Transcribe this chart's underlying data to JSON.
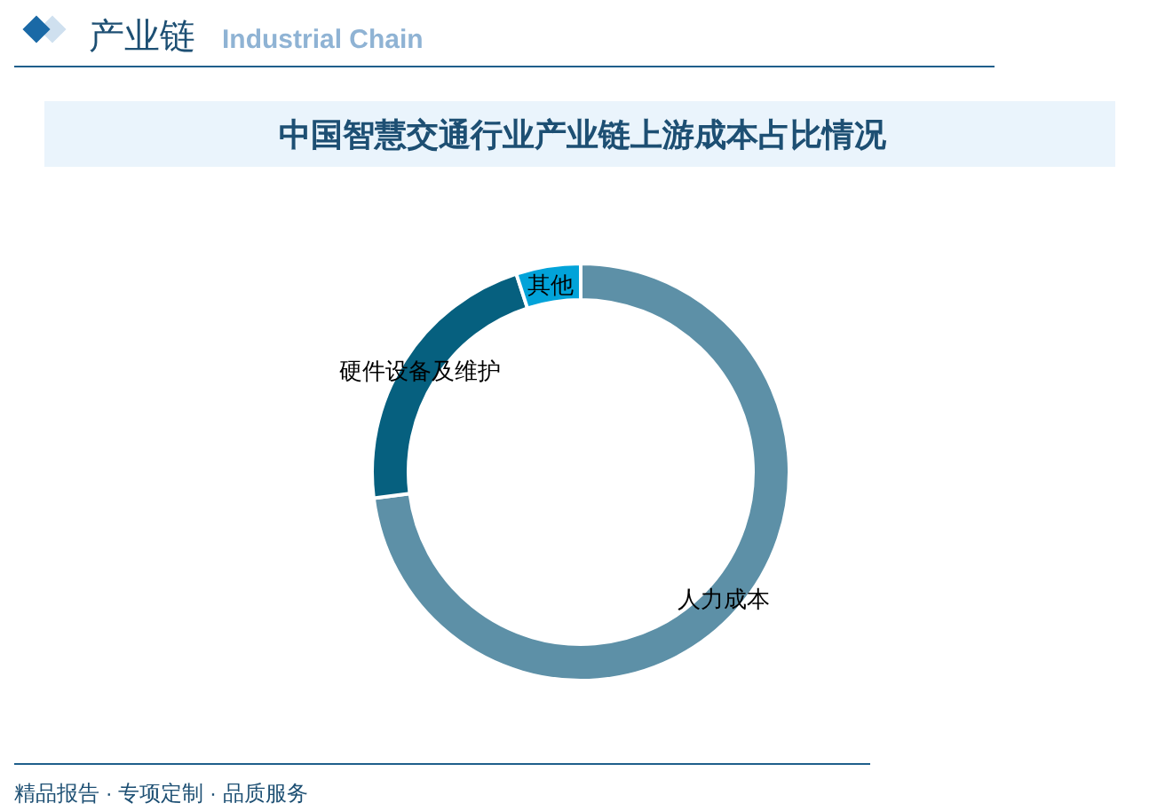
{
  "chart_data": {
    "type": "donut",
    "title": "中国智慧交通行业产业链上游成本占比情况",
    "categories": [
      "人力成本",
      "硬件设备及维护",
      "其他"
    ],
    "values": [
      73,
      22,
      5
    ],
    "colors": [
      "#5d90a7",
      "#06607f",
      "#02a3d9"
    ],
    "annotations": [
      "产业链",
      "Industrial Chain",
      "精品报告 · 专项定制 · 品质服务"
    ]
  }
}
